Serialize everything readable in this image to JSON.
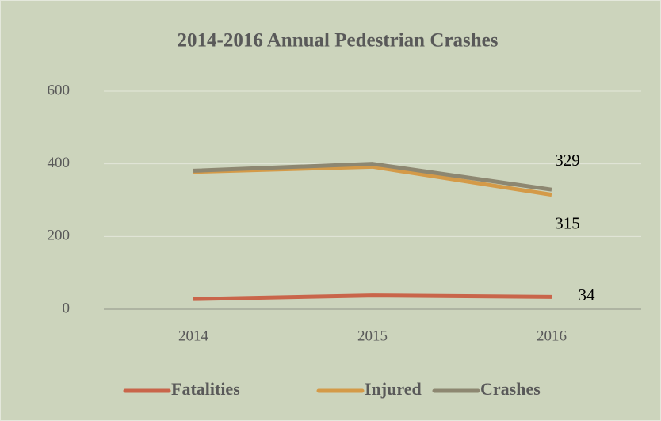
{
  "chart_data": {
    "type": "line",
    "title": "2014-2016 Annual Pedestrian Crashes",
    "categories": [
      "2014",
      "2015",
      "2016"
    ],
    "series": [
      {
        "name": "Fatalities",
        "color": "#c9654a",
        "values": [
          28,
          38,
          34
        ]
      },
      {
        "name": "Injured",
        "color": "#d49a48",
        "values": [
          378,
          392,
          315
        ]
      },
      {
        "name": "Crashes",
        "color": "#8d8771",
        "values": [
          381,
          400,
          329
        ]
      }
    ],
    "ylim": [
      0,
      600
    ],
    "yticks": [
      0,
      200,
      400,
      600
    ],
    "grid": true,
    "data_labels": "last",
    "legend": "bottom"
  }
}
